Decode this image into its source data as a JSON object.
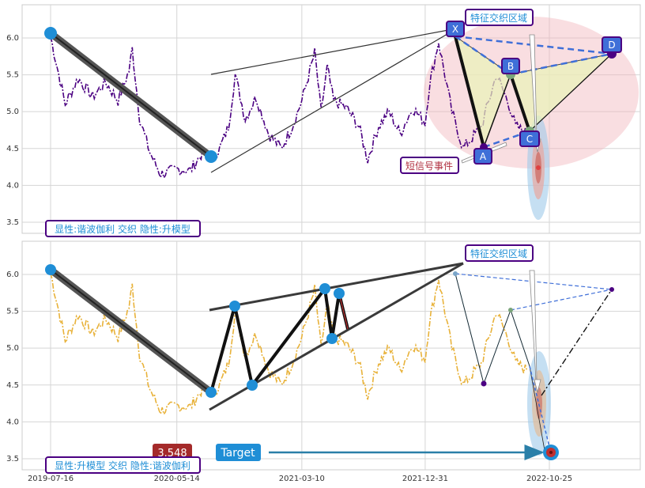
{
  "chart_data": [
    {
      "type": "line",
      "panel": "top",
      "ylim": [
        3.35,
        6.45
      ],
      "yticks": [
        "3.5",
        "4.0",
        "4.5",
        "5.0",
        "5.5",
        "6.0"
      ],
      "series_color": "#4b0082",
      "series_style": "dash-dot",
      "series_points": [
        [
          "2019-07-16",
          6.02
        ],
        [
          "2019-08-20",
          5.1
        ],
        [
          "2019-09-20",
          5.45
        ],
        [
          "2019-10-25",
          5.2
        ],
        [
          "2019-11-25",
          5.4
        ],
        [
          "2019-12-25",
          5.15
        ],
        [
          "2020-01-20",
          5.55
        ],
        [
          "2020-01-28",
          5.85
        ],
        [
          "2020-02-15",
          4.9
        ],
        [
          "2020-03-10",
          4.45
        ],
        [
          "2020-04-05",
          4.15
        ],
        [
          "2020-05-14",
          4.22
        ],
        [
          "2020-06-15",
          4.2
        ],
        [
          "2020-07-15",
          4.45
        ],
        [
          "2020-08-10",
          4.4
        ],
        [
          "2020-08-25",
          4.5
        ],
        [
          "2020-09-15",
          4.8
        ],
        [
          "2020-10-01",
          5.5
        ],
        [
          "2020-10-25",
          4.9
        ],
        [
          "2020-11-20",
          5.2
        ],
        [
          "2020-12-20",
          4.7
        ],
        [
          "2021-01-20",
          4.5
        ],
        [
          "2021-02-15",
          4.8
        ],
        [
          "2021-03-10",
          5.15
        ],
        [
          "2021-04-10",
          5.8
        ],
        [
          "2021-04-25",
          5.0
        ],
        [
          "2021-05-10",
          5.6
        ],
        [
          "2021-05-25",
          5.15
        ],
        [
          "2021-06-25",
          5.05
        ],
        [
          "2021-07-25",
          4.8
        ],
        [
          "2021-08-15",
          4.35
        ],
        [
          "2021-09-10",
          4.8
        ],
        [
          "2021-10-05",
          5.0
        ],
        [
          "2021-11-01",
          4.7
        ],
        [
          "2021-12-01",
          5.05
        ],
        [
          "2021-12-31",
          4.85
        ],
        [
          "2022-01-10",
          5.35
        ],
        [
          "2022-02-01",
          5.95
        ],
        [
          "2022-03-05",
          5.0
        ],
        [
          "2022-04-01",
          4.5
        ],
        [
          "2022-05-15",
          4.8
        ],
        [
          "2022-06-20",
          5.5
        ],
        [
          "2022-07-20",
          5.1
        ],
        [
          "2022-08-05",
          4.8
        ],
        [
          "2022-09-01",
          4.7
        ]
      ],
      "points": [
        {
          "label": "X",
          "x": "2022-02-01",
          "y": 5.98
        },
        {
          "label": "A",
          "x": "2022-04-01",
          "y": 4.5
        },
        {
          "label": "B",
          "x": "2022-06-20",
          "y": 5.5
        },
        {
          "label": "C",
          "x": "2022-08-05",
          "y": 4.72
        },
        {
          "label": "D",
          "x": "2023-03-05",
          "y": 5.78
        }
      ],
      "annotations": [
        "特征交织区域",
        "短信号事件"
      ],
      "info_box": "显性:谐波伽利 交织 隐性:升模型"
    },
    {
      "type": "line",
      "panel": "bottom",
      "ylim": [
        3.35,
        6.45
      ],
      "yticks": [
        "3.5",
        "4.0",
        "4.5",
        "5.0",
        "5.5",
        "6.0"
      ],
      "xticks": [
        "2019-07-16",
        "2020-05-14",
        "2021-03-10",
        "2021-12-31",
        "2022-10-25"
      ],
      "series_color": "#e8b23a",
      "series_style": "dash-dot",
      "annotations": [
        "特征交织区域"
      ],
      "price_tag": "3.548",
      "target_label": "Target",
      "info_box": "显性:升模型 交织 隐性:谐波伽利"
    }
  ]
}
